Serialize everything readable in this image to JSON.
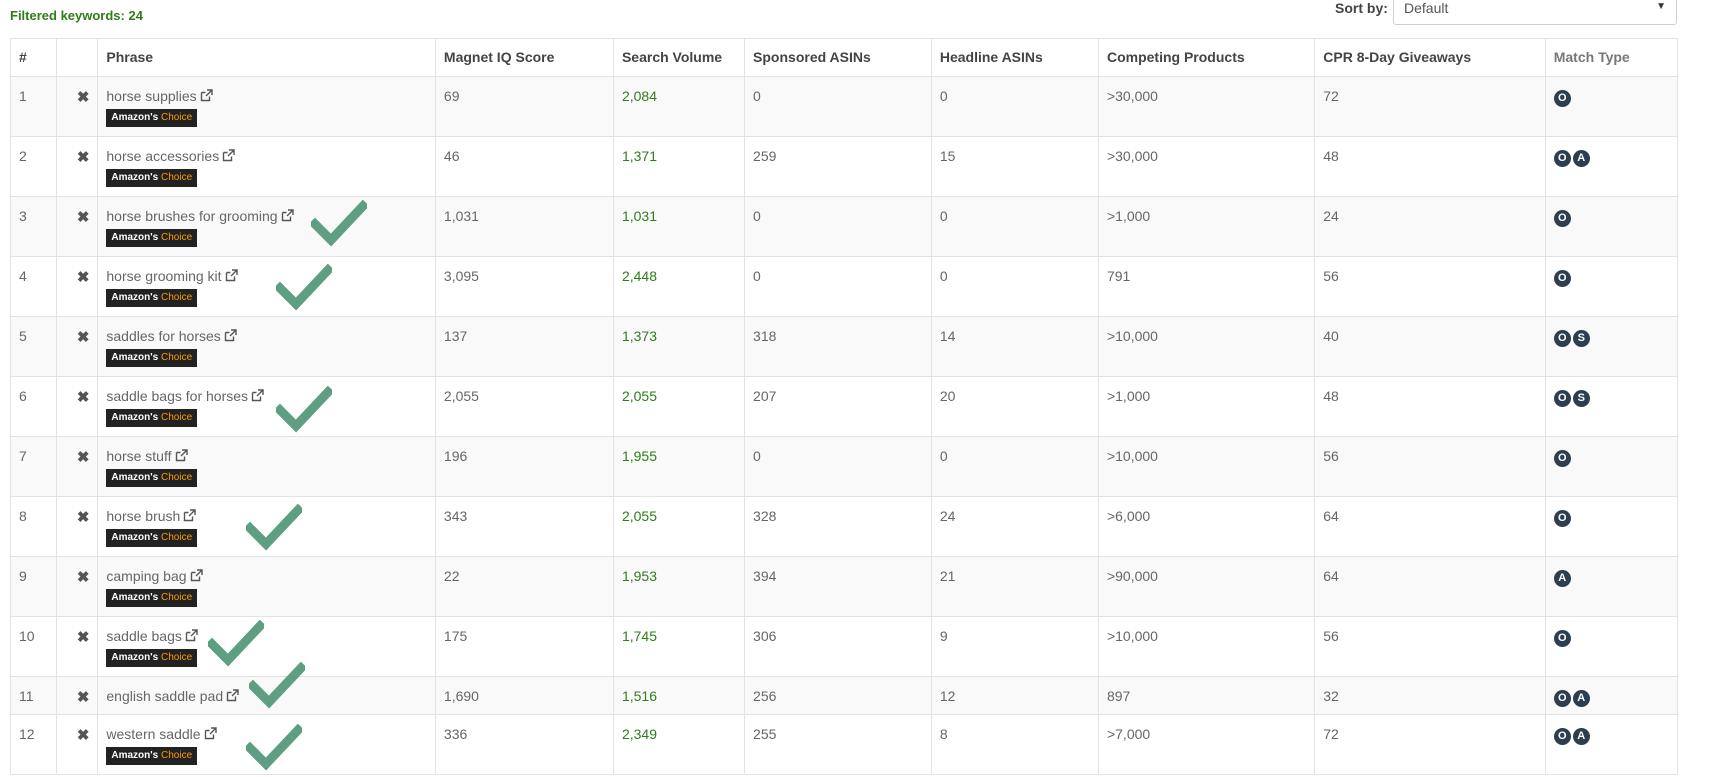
{
  "header": {
    "filtered_keywords": "Filtered keywords: 24",
    "sort_by_label": "Sort by:",
    "sort_by_value": "Default"
  },
  "table": {
    "columns": [
      "#",
      "",
      "Phrase",
      "Magnet IQ Score",
      "Search Volume",
      "Sponsored ASINs",
      "Headline ASINs",
      "Competing Products",
      "CPR 8-Day Giveaways",
      "Match Type"
    ],
    "badge": {
      "prefix": "Amazon's",
      "suffix": "Choice"
    },
    "rows": [
      {
        "num": "1",
        "phrase": "horse supplies",
        "badge": true,
        "iq": "69",
        "volume": "2,084",
        "sponsored": "0",
        "headline": "0",
        "competing": ">30,000",
        "cpr": "72",
        "match": [
          "O"
        ],
        "checked": false
      },
      {
        "num": "2",
        "phrase": "horse accessories",
        "badge": true,
        "iq": "46",
        "volume": "1,371",
        "sponsored": "259",
        "headline": "15",
        "competing": ">30,000",
        "cpr": "48",
        "match": [
          "O",
          "A"
        ],
        "checked": false
      },
      {
        "num": "3",
        "phrase": "horse brushes for grooming",
        "badge": true,
        "iq": "1,031",
        "volume": "1,031",
        "sponsored": "0",
        "headline": "0",
        "competing": ">1,000",
        "cpr": "24",
        "match": [
          "O"
        ],
        "checked": true
      },
      {
        "num": "4",
        "phrase": "horse grooming kit",
        "badge": true,
        "iq": "3,095",
        "volume": "2,448",
        "sponsored": "0",
        "headline": "0",
        "competing": "791",
        "cpr": "56",
        "match": [
          "O"
        ],
        "checked": true
      },
      {
        "num": "5",
        "phrase": "saddles for horses",
        "badge": true,
        "iq": "137",
        "volume": "1,373",
        "sponsored": "318",
        "headline": "14",
        "competing": ">10,000",
        "cpr": "40",
        "match": [
          "O",
          "S"
        ],
        "checked": false
      },
      {
        "num": "6",
        "phrase": "saddle bags for horses",
        "badge": true,
        "iq": "2,055",
        "volume": "2,055",
        "sponsored": "207",
        "headline": "20",
        "competing": ">1,000",
        "cpr": "48",
        "match": [
          "O",
          "S"
        ],
        "checked": true
      },
      {
        "num": "7",
        "phrase": "horse stuff",
        "badge": true,
        "iq": "196",
        "volume": "1,955",
        "sponsored": "0",
        "headline": "0",
        "competing": ">10,000",
        "cpr": "56",
        "match": [
          "O"
        ],
        "checked": false
      },
      {
        "num": "8",
        "phrase": "horse brush",
        "badge": true,
        "iq": "343",
        "volume": "2,055",
        "sponsored": "328",
        "headline": "24",
        "competing": ">6,000",
        "cpr": "64",
        "match": [
          "O"
        ],
        "checked": true
      },
      {
        "num": "9",
        "phrase": "camping bag",
        "badge": true,
        "iq": "22",
        "volume": "1,953",
        "sponsored": "394",
        "headline": "21",
        "competing": ">90,000",
        "cpr": "64",
        "match": [
          "A"
        ],
        "checked": false
      },
      {
        "num": "10",
        "phrase": "saddle bags",
        "badge": true,
        "iq": "175",
        "volume": "1,745",
        "sponsored": "306",
        "headline": "9",
        "competing": ">10,000",
        "cpr": "56",
        "match": [
          "O"
        ],
        "checked": true
      },
      {
        "num": "11",
        "phrase": "english saddle pad",
        "badge": false,
        "iq": "1,690",
        "volume": "1,516",
        "sponsored": "256",
        "headline": "12",
        "competing": "897",
        "cpr": "32",
        "match": [
          "O",
          "A"
        ],
        "checked": true
      },
      {
        "num": "12",
        "phrase": "western saddle",
        "badge": true,
        "iq": "336",
        "volume": "2,349",
        "sponsored": "255",
        "headline": "8",
        "competing": ">7,000",
        "cpr": "72",
        "match": [
          "O",
          "A"
        ],
        "checked": true
      }
    ]
  },
  "icons": {
    "remove": "x-icon",
    "external": "external-link-icon",
    "check": "checkmark-annotation-icon"
  },
  "colors": {
    "volume": "#2e7d1a",
    "badge_bg": "#222222",
    "badge_choice": "#ff9900",
    "match_badge": "#2c3e50",
    "checkmark": "#5e9e82"
  }
}
